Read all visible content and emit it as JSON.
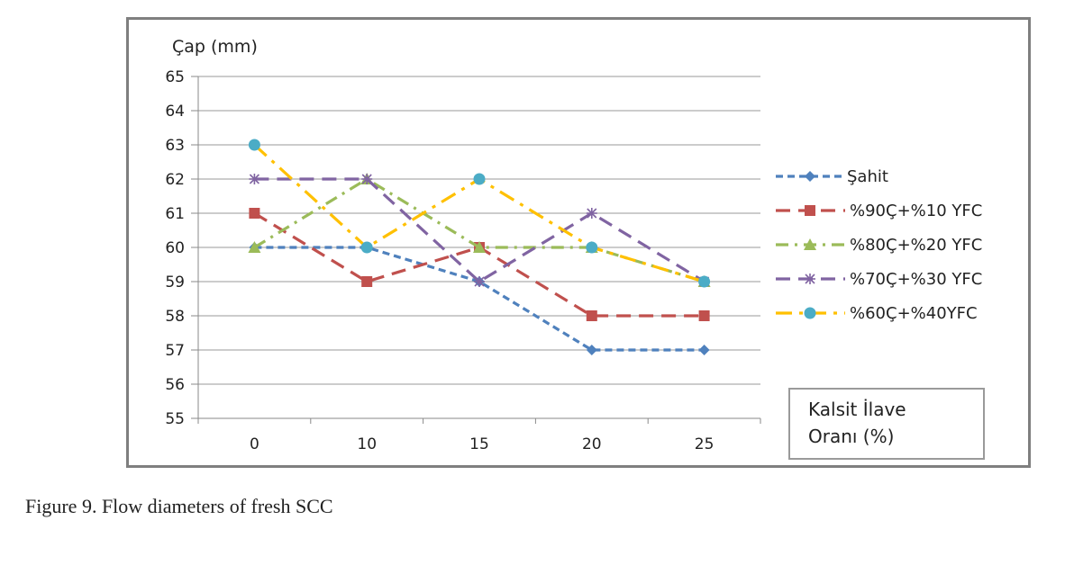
{
  "chart_data": {
    "type": "line",
    "ylabel": "Çap (mm)",
    "xlabel": "",
    "categories": [
      "0",
      "10",
      "15",
      "20",
      "25"
    ],
    "ylim": [
      55,
      65
    ],
    "yticks": [
      "55",
      "56",
      "57",
      "58",
      "59",
      "60",
      "61",
      "62",
      "63",
      "64",
      "65"
    ],
    "grid": "horizontal",
    "legend_position": "right",
    "annotation": [
      "Kalsit İlave",
      "Oranı (%)"
    ],
    "series": [
      {
        "name": "Şahit",
        "values": [
          60,
          60,
          59,
          57,
          57
        ],
        "color": "#4f81bd",
        "marker": "diamond",
        "dash": "short-dash"
      },
      {
        "name": "%90Ç+%10 YFC",
        "values": [
          61,
          59,
          60,
          58,
          58
        ],
        "color": "#c0504d",
        "marker": "square",
        "dash": "long-dash"
      },
      {
        "name": "%80Ç+%20 YFC",
        "values": [
          60,
          62,
          60,
          60,
          59
        ],
        "color": "#9bbb59",
        "marker": "triangle",
        "dash": "dash-dot"
      },
      {
        "name": "%70Ç+%30 YFC",
        "values": [
          62,
          62,
          59,
          61,
          59
        ],
        "color": "#8064a2",
        "marker": "star",
        "dash": "long-dash"
      },
      {
        "name": "%60Ç+%40YFC",
        "values": [
          63,
          60,
          62,
          60,
          59
        ],
        "color": "#ffc000",
        "marker": "circle",
        "dash": "long-dash-dot"
      }
    ]
  },
  "caption": "Figure 9. Flow diameters of fresh SCC"
}
